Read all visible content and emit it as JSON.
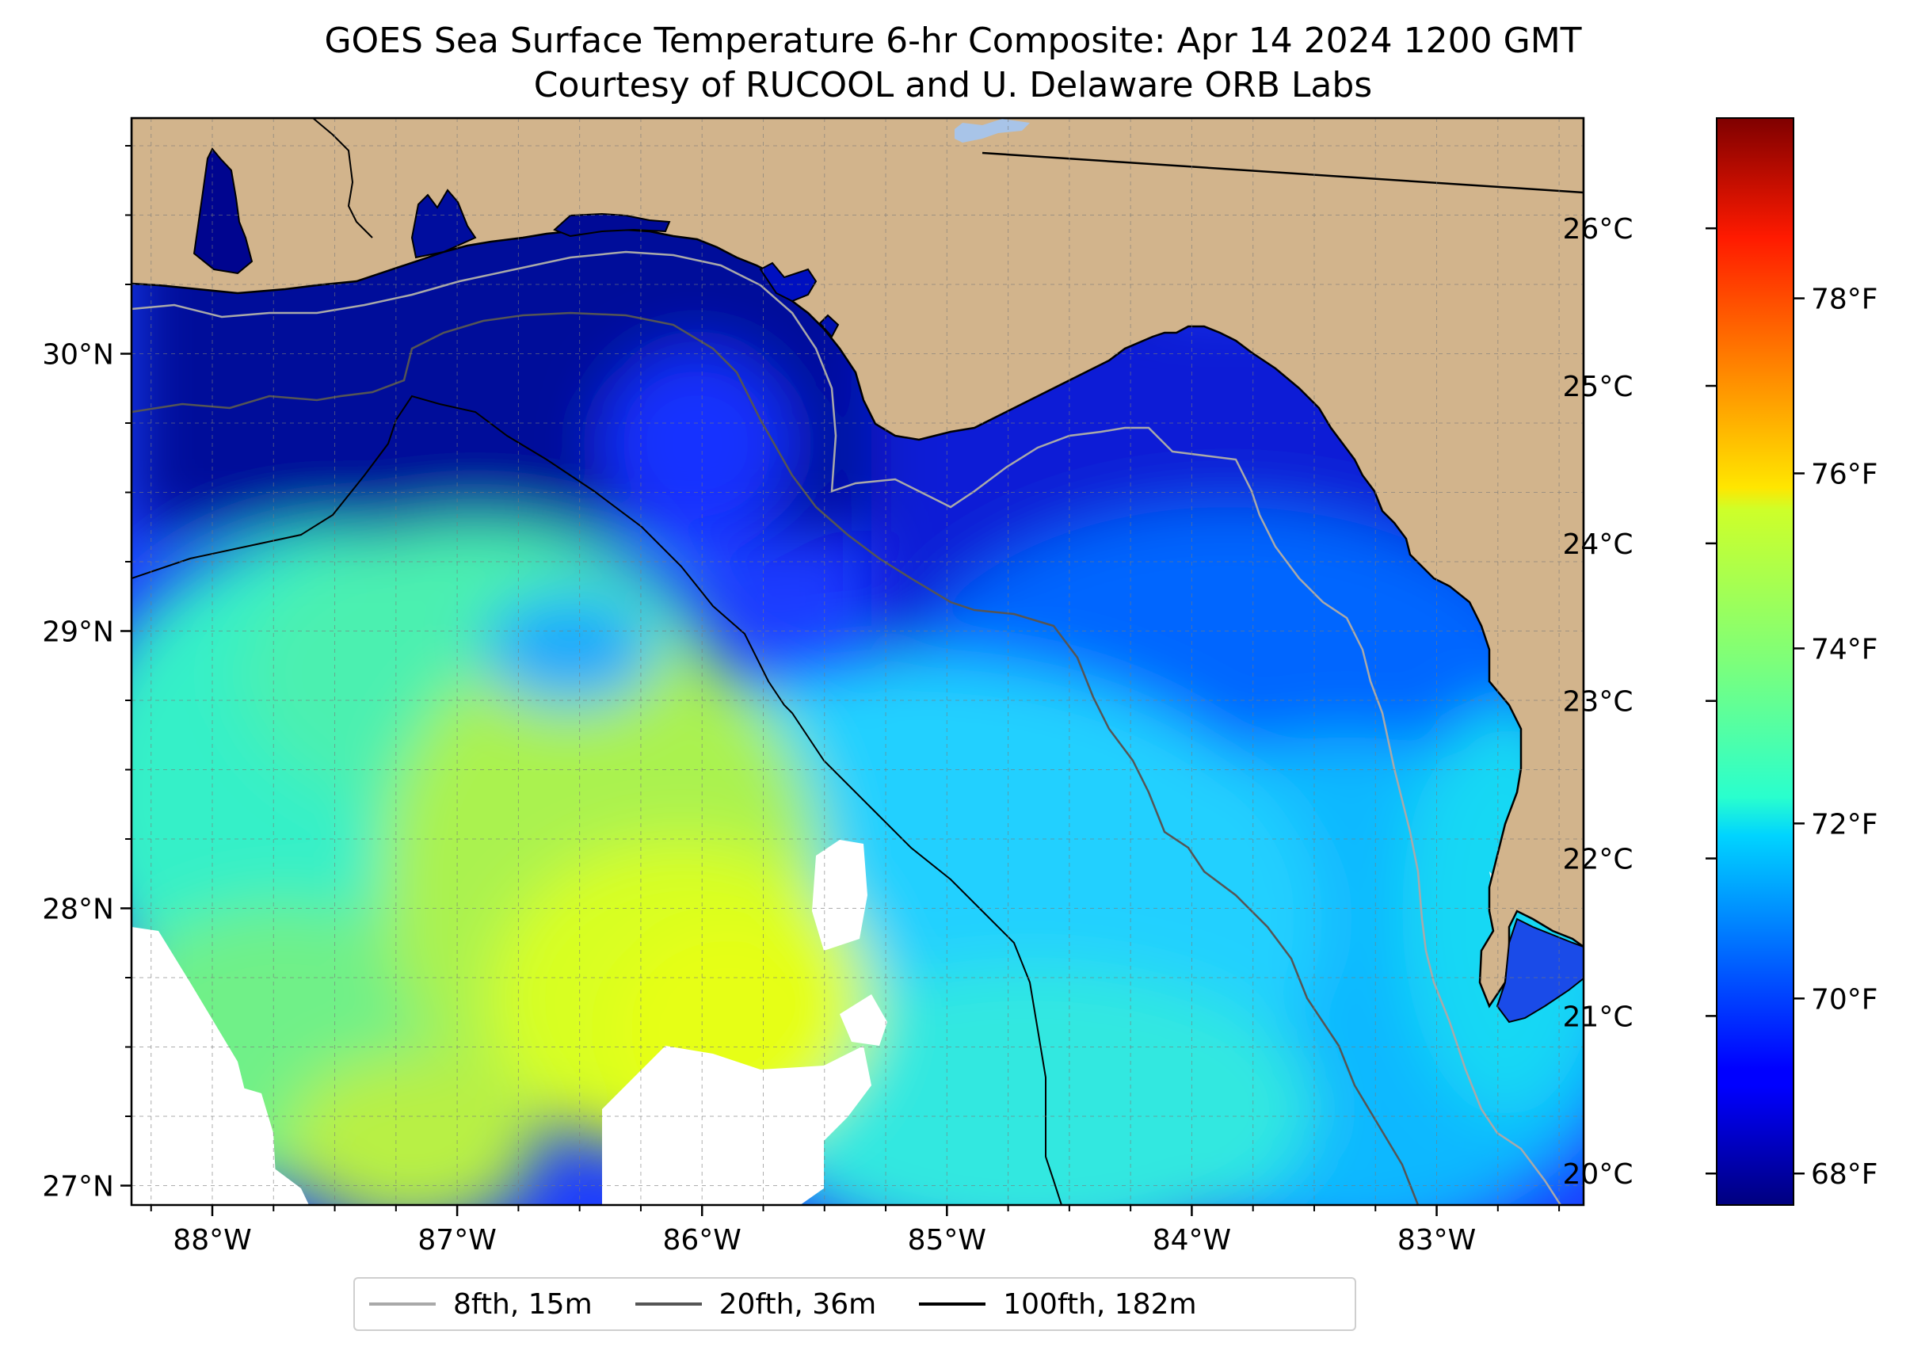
{
  "title": {
    "line1": "GOES Sea Surface Temperature 6-hr Composite: Apr 14 2024 1200 GMT",
    "line2": "Courtesy of RUCOOL and U. Delaware ORB Labs"
  },
  "map": {
    "lon_range": [
      -88.33,
      -82.4
    ],
    "lat_range": [
      26.93,
      30.85
    ],
    "lat_ticks": [
      {
        "value": 30,
        "label": "30°N"
      },
      {
        "value": 29,
        "label": "29°N"
      },
      {
        "value": 28,
        "label": "28°N"
      },
      {
        "value": 27,
        "label": "27°N"
      }
    ],
    "lon_ticks": [
      {
        "value": -88,
        "label": "88°W"
      },
      {
        "value": -87,
        "label": "87°W"
      },
      {
        "value": -86,
        "label": "86°W"
      },
      {
        "value": -85,
        "label": "85°W"
      },
      {
        "value": -84,
        "label": "84°W"
      },
      {
        "value": -83,
        "label": "83°W"
      }
    ],
    "gridlines": "dashed",
    "colors": {
      "land": "#d2b48c",
      "no_data": "#ffffff",
      "isobath_8fth": "#a9a9a9",
      "isobath_20fth": "#555555",
      "isobath_100fth": "#000000"
    }
  },
  "colorbar": {
    "colormap": "jet",
    "range_c": [
      19.8,
      26.7
    ],
    "celsius_ticks": [
      {
        "value": 26,
        "label": "26°C"
      },
      {
        "value": 25,
        "label": "25°C"
      },
      {
        "value": 24,
        "label": "24°C"
      },
      {
        "value": 23,
        "label": "23°C"
      },
      {
        "value": 22,
        "label": "22°C"
      },
      {
        "value": 21,
        "label": "21°C"
      },
      {
        "value": 20,
        "label": "20°C"
      }
    ],
    "fahrenheit_ticks": [
      {
        "value": 78,
        "label": "78°F"
      },
      {
        "value": 76,
        "label": "76°F"
      },
      {
        "value": 74,
        "label": "74°F"
      },
      {
        "value": 72,
        "label": "72°F"
      },
      {
        "value": 70,
        "label": "70°F"
      },
      {
        "value": 68,
        "label": "68°F"
      }
    ]
  },
  "legend": {
    "items": [
      {
        "label": "8fth, 15m",
        "color": "#a9a9a9"
      },
      {
        "label": "20fth, 36m",
        "color": "#555555"
      },
      {
        "label": "100fth, 182m",
        "color": "#000000"
      }
    ]
  }
}
